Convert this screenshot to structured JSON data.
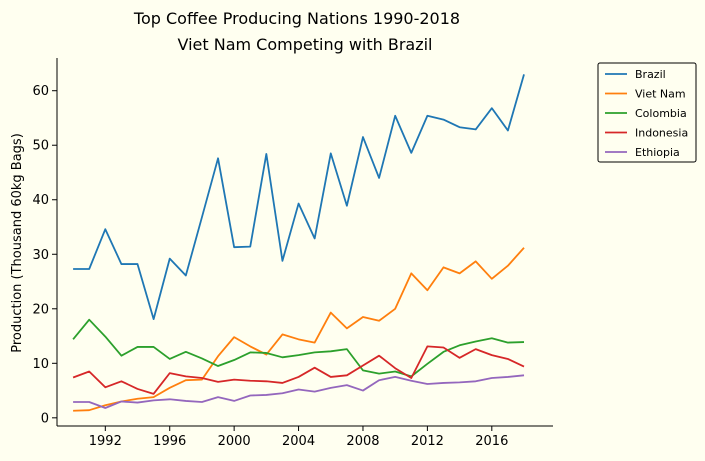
{
  "chart_data": {
    "type": "line",
    "title": "Top Coffee Producing Nations 1990-2018",
    "subtitle": "Viet Nam Competing with Brazil",
    "xlabel": "",
    "ylabel": "Production (Thousand 60kg Bags)",
    "xlim": [
      1989,
      2019.8
    ],
    "ylim": [
      -1.5,
      66
    ],
    "xticks": [
      1992,
      1996,
      2000,
      2004,
      2008,
      2012,
      2016
    ],
    "yticks": [
      0,
      10,
      20,
      30,
      40,
      50,
      60
    ],
    "grid": false,
    "legend_position": "upper right, outside plot",
    "x": [
      1990,
      1991,
      1992,
      1993,
      1994,
      1995,
      1996,
      1997,
      1998,
      1999,
      2000,
      2001,
      2002,
      2003,
      2004,
      2005,
      2006,
      2007,
      2008,
      2009,
      2010,
      2011,
      2012,
      2013,
      2014,
      2015,
      2016,
      2017,
      2018
    ],
    "series": [
      {
        "name": "Brazil",
        "color": "#1f77b4",
        "values": [
          27.3,
          27.3,
          34.6,
          28.2,
          28.2,
          18.1,
          29.2,
          26.1,
          36.8,
          47.6,
          31.3,
          31.4,
          48.4,
          28.8,
          39.3,
          32.9,
          48.5,
          38.9,
          51.5,
          44.0,
          55.4,
          48.6,
          55.4,
          54.7,
          53.3,
          52.9,
          56.8,
          52.7,
          63.0
        ]
      },
      {
        "name": "Viet Nam",
        "color": "#ff7f0e",
        "values": [
          1.3,
          1.4,
          2.3,
          3.0,
          3.5,
          3.8,
          5.5,
          6.9,
          7.0,
          11.3,
          14.8,
          13.1,
          11.6,
          15.3,
          14.4,
          13.8,
          19.3,
          16.4,
          18.5,
          17.8,
          20.0,
          26.5,
          23.4,
          27.6,
          26.5,
          28.7,
          25.5,
          27.9,
          31.2
        ]
      },
      {
        "name": "Colombia",
        "color": "#2ca02c",
        "values": [
          14.4,
          18.0,
          14.9,
          11.4,
          13.0,
          13.0,
          10.8,
          12.1,
          10.9,
          9.5,
          10.6,
          12.0,
          11.9,
          11.1,
          11.5,
          12.0,
          12.2,
          12.6,
          8.7,
          8.1,
          8.5,
          7.6,
          9.9,
          12.1,
          13.3,
          14.0,
          14.6,
          13.8,
          13.9
        ]
      },
      {
        "name": "Indonesia",
        "color": "#d62728",
        "values": [
          7.4,
          8.5,
          5.6,
          6.7,
          5.3,
          4.4,
          8.2,
          7.6,
          7.3,
          6.6,
          7.0,
          6.8,
          6.7,
          6.4,
          7.5,
          9.2,
          7.5,
          7.8,
          9.6,
          11.4,
          9.1,
          7.3,
          13.1,
          12.9,
          11.0,
          12.6,
          11.5,
          10.8,
          9.4
        ]
      },
      {
        "name": "Ethiopia",
        "color": "#9467bd",
        "values": [
          2.9,
          2.9,
          1.8,
          3.0,
          2.8,
          3.2,
          3.4,
          3.1,
          2.9,
          3.8,
          3.1,
          4.1,
          4.2,
          4.5,
          5.2,
          4.8,
          5.5,
          6.0,
          5.0,
          6.9,
          7.5,
          6.8,
          6.2,
          6.4,
          6.5,
          6.7,
          7.3,
          7.5,
          7.8
        ]
      }
    ]
  }
}
